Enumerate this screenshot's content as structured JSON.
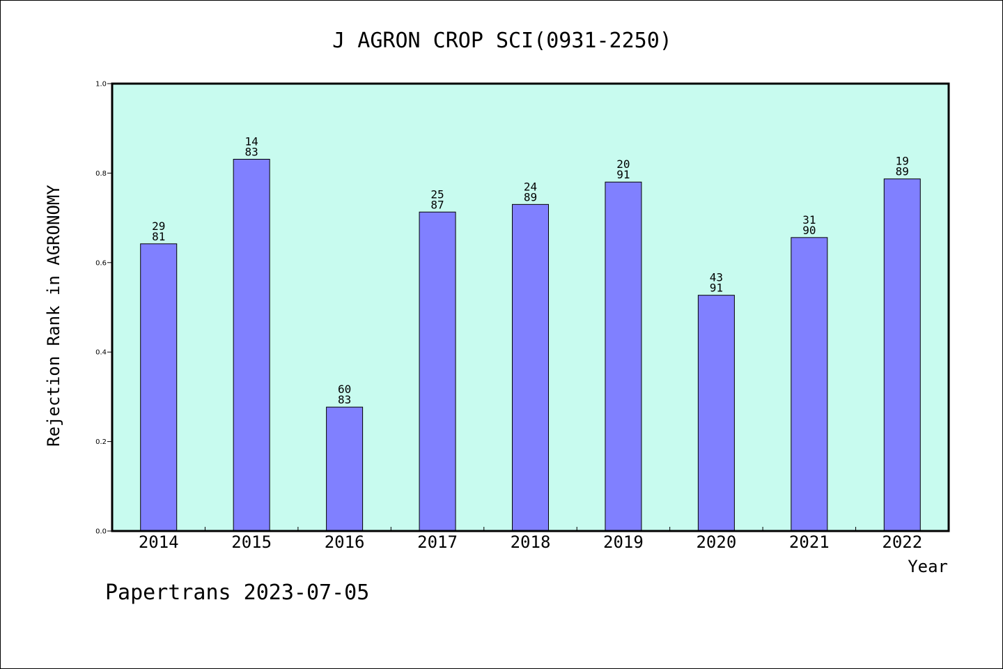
{
  "footer": "Papertrans 2023-07-05",
  "colors": {
    "plot_background": "#c8fbef",
    "bar_fill": "#8080ff",
    "bar_stroke": "#000000",
    "axis": "#000000"
  },
  "chart_data": {
    "type": "bar",
    "title": "J AGRON CROP SCI(0931-2250)",
    "xlabel": "Year",
    "ylabel": "Rejection Rank in AGRONOMY",
    "ylim": [
      0,
      1.0
    ],
    "yticks": [
      "0.0",
      "0.2",
      "0.4",
      "0.6",
      "0.8",
      "1.0"
    ],
    "grid": false,
    "categories": [
      "2014",
      "2015",
      "2016",
      "2017",
      "2018",
      "2019",
      "2020",
      "2021",
      "2022"
    ],
    "values": [
      0.642,
      0.831,
      0.277,
      0.713,
      0.73,
      0.78,
      0.527,
      0.656,
      0.787
    ],
    "bar_labels": [
      [
        "29",
        "81"
      ],
      [
        "14",
        "83"
      ],
      [
        "60",
        "83"
      ],
      [
        "25",
        "87"
      ],
      [
        "24",
        "89"
      ],
      [
        "20",
        "91"
      ],
      [
        "43",
        "91"
      ],
      [
        "31",
        "90"
      ],
      [
        "19",
        "89"
      ]
    ]
  }
}
